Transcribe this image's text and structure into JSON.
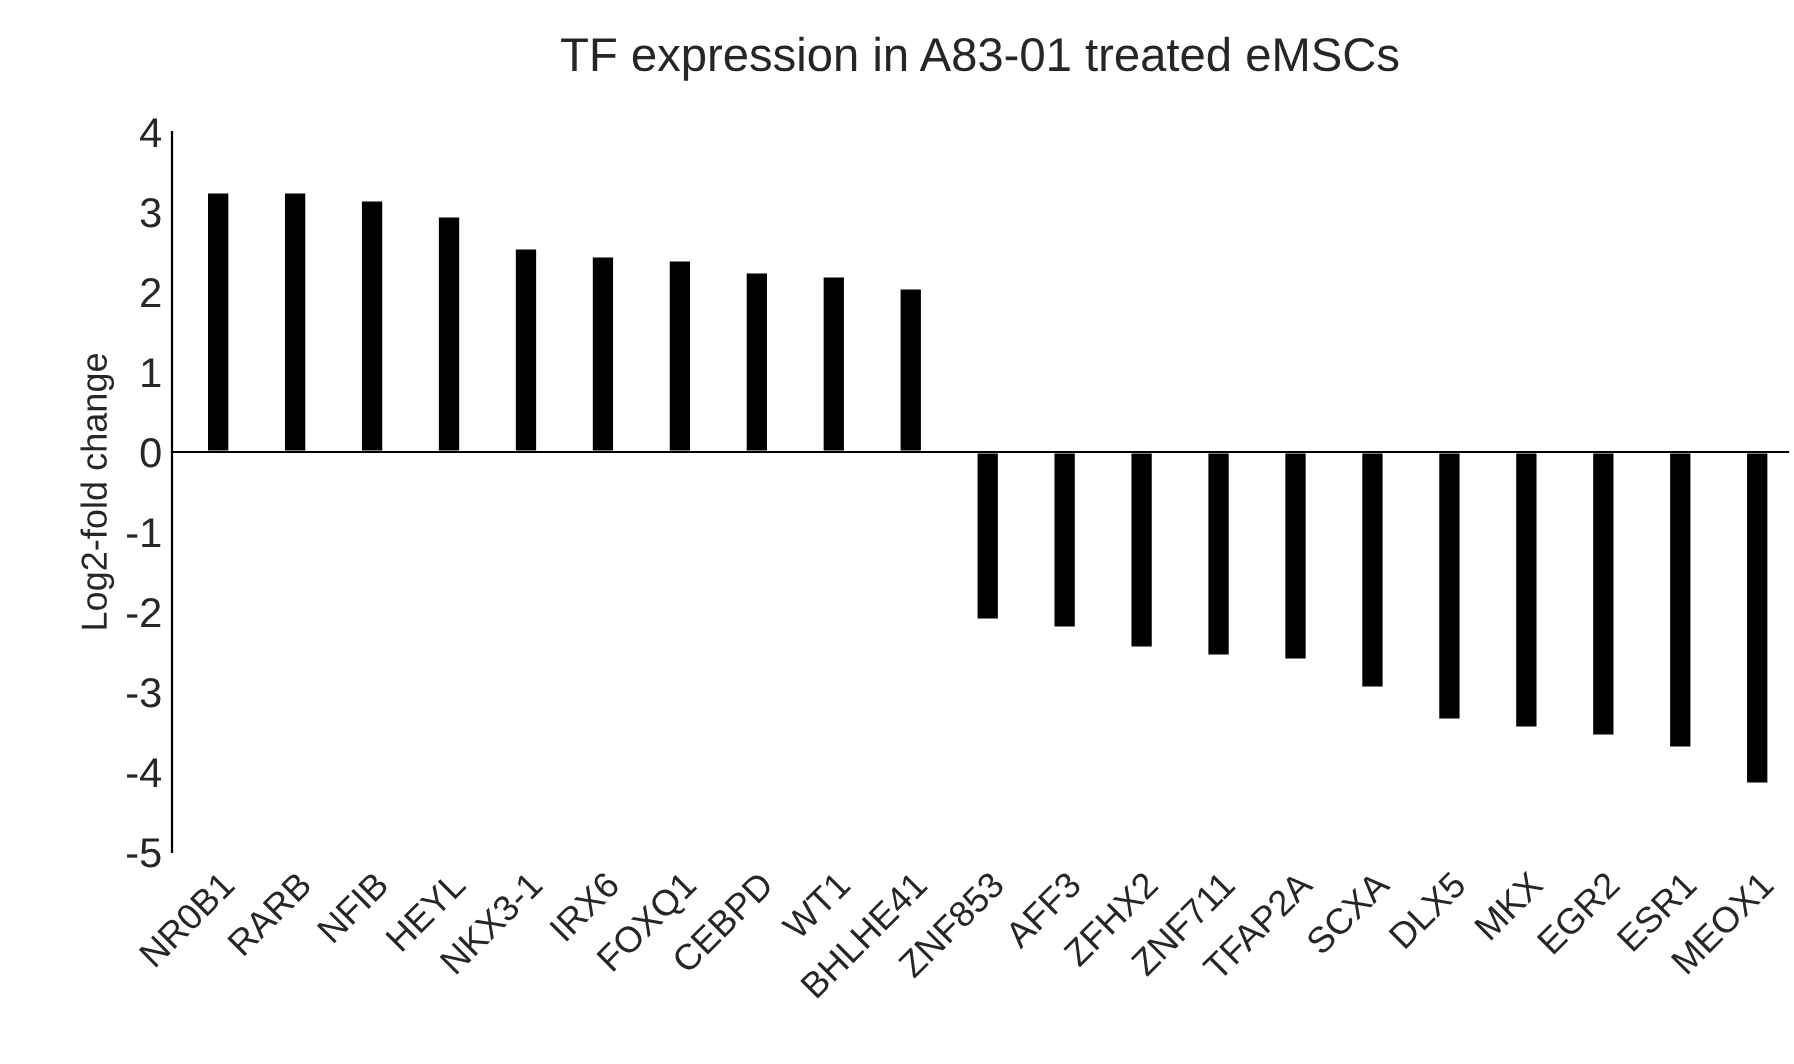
{
  "chart_data": {
    "type": "bar",
    "title": "TF expression in A83-01 treated eMSCs",
    "ylabel": "Log2-fold change",
    "categories": [
      "NR0B1",
      "RARB",
      "NFIB",
      "HEYL",
      "NKX3-1",
      "IRX6",
      "FOXQ1",
      "CEBPD",
      "WT1",
      "BHLHE41",
      "ZNF853",
      "AFF3",
      "ZFHX2",
      "ZNF711",
      "TFAP2A",
      "SCXA",
      "DLX5",
      "MKX",
      "EGR2",
      "ESR1",
      "MEOX1"
    ],
    "values": [
      3.25,
      3.25,
      3.15,
      2.95,
      2.55,
      2.45,
      2.4,
      2.25,
      2.2,
      2.05,
      -2.1,
      -2.2,
      -2.45,
      -2.55,
      -2.6,
      -2.95,
      -3.35,
      -3.45,
      -3.55,
      -3.7,
      -4.15
    ],
    "color": "#000000",
    "ylim": [
      -5,
      4
    ],
    "yticks": [
      -5,
      -4,
      -3,
      -2,
      -1,
      0,
      1,
      2,
      3,
      4
    ],
    "legend": false
  }
}
